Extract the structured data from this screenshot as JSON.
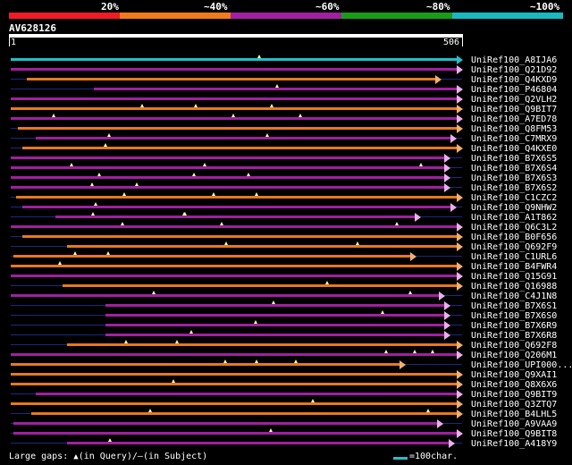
{
  "legend": {
    "labels": [
      "20%",
      "~40%",
      "~60%",
      "~80%",
      "~100%"
    ],
    "colors": [
      "#ee1c25",
      "#f07a1c",
      "#a021a0",
      "#1a9c1a",
      "#1ab9c0"
    ]
  },
  "query": {
    "name": "AV628126",
    "start": "1",
    "end": "506"
  },
  "rows": [
    {
      "name": "UniRef100_A8IJA6",
      "x1": 12,
      "x2": 517,
      "color": "#22c0c8"
    },
    {
      "name": "UniRef100_Q21D92",
      "x1": 12,
      "x2": 517,
      "color": "#a020a0"
    },
    {
      "name": "UniRef100_Q4KXD9",
      "x1": 30,
      "x2": 493,
      "color": "#e87820"
    },
    {
      "name": "UniRef100_P46804",
      "x1": 105,
      "x2": 517,
      "color": "#a020a0"
    },
    {
      "name": "UniRef100_Q2VLH2",
      "x1": 12,
      "x2": 517,
      "color": "#a020a0"
    },
    {
      "name": "UniRef100_Q9BIT7",
      "x1": 12,
      "x2": 517,
      "color": "#e87820"
    },
    {
      "name": "UniRef100_A7ED78",
      "x1": 12,
      "x2": 517,
      "color": "#a020a0"
    },
    {
      "name": "UniRef100_Q8FM53",
      "x1": 20,
      "x2": 517,
      "color": "#e87820"
    },
    {
      "name": "UniRef100_C7MRX9",
      "x1": 40,
      "x2": 510,
      "color": "#a020a0"
    },
    {
      "name": "UniRef100_Q4KXE0",
      "x1": 25,
      "x2": 517,
      "color": "#e87820"
    },
    {
      "name": "UniRef100_B7X6S5",
      "x1": 12,
      "x2": 503,
      "color": "#a020a0"
    },
    {
      "name": "UniRef100_B7X6S4",
      "x1": 12,
      "x2": 503,
      "color": "#a020a0"
    },
    {
      "name": "UniRef100_B7X6S3",
      "x1": 12,
      "x2": 503,
      "color": "#a020a0"
    },
    {
      "name": "UniRef100_B7X6S2",
      "x1": 12,
      "x2": 503,
      "color": "#a020a0"
    },
    {
      "name": "UniRef100_C1CZC2",
      "x1": 18,
      "x2": 517,
      "color": "#e87820"
    },
    {
      "name": "UniRef100_Q9NHW2",
      "x1": 25,
      "x2": 510,
      "color": "#a020a0"
    },
    {
      "name": "UniRef100_A1T862",
      "x1": 62,
      "x2": 470,
      "color": "#a020a0"
    },
    {
      "name": "UniRef100_Q6C3L2",
      "x1": 12,
      "x2": 517,
      "color": "#a020a0"
    },
    {
      "name": "UniRef100_B0F656",
      "x1": 25,
      "x2": 517,
      "color": "#e87820"
    },
    {
      "name": "UniRef100_Q692F9",
      "x1": 75,
      "x2": 517,
      "color": "#e87820"
    },
    {
      "name": "UniRef100_C1URL6",
      "x1": 15,
      "x2": 465,
      "color": "#e87820"
    },
    {
      "name": "UniRef100_B4FWR4",
      "x1": 12,
      "x2": 517,
      "color": "#e87820"
    },
    {
      "name": "UniRef100_Q15G91",
      "x1": 12,
      "x2": 517,
      "color": "#a020a0"
    },
    {
      "name": "UniRef100_Q16988",
      "x1": 70,
      "x2": 517,
      "color": "#e87820"
    },
    {
      "name": "UniRef100_C4J1N8",
      "x1": 12,
      "x2": 497,
      "color": "#a020a0"
    },
    {
      "name": "UniRef100_B7X6S1",
      "x1": 118,
      "x2": 503,
      "color": "#a020a0"
    },
    {
      "name": "UniRef100_B7X6S0",
      "x1": 118,
      "x2": 503,
      "color": "#a020a0"
    },
    {
      "name": "UniRef100_B7X6R9",
      "x1": 118,
      "x2": 503,
      "color": "#a020a0"
    },
    {
      "name": "UniRef100_B7X6R8",
      "x1": 118,
      "x2": 503,
      "color": "#a020a0"
    },
    {
      "name": "UniRef100_Q692F8",
      "x1": 75,
      "x2": 517,
      "color": "#e87820"
    },
    {
      "name": "UniRef100_Q206M1",
      "x1": 12,
      "x2": 517,
      "color": "#a020a0"
    },
    {
      "name": "UniRef100_UPI000...",
      "x1": 12,
      "x2": 453,
      "color": "#e87820"
    },
    {
      "name": "UniRef100_Q9XAI1",
      "x1": 12,
      "x2": 517,
      "color": "#e87820"
    },
    {
      "name": "UniRef100_Q8X6X6",
      "x1": 12,
      "x2": 517,
      "color": "#e87820"
    },
    {
      "name": "UniRef100_Q9BIT9",
      "x1": 40,
      "x2": 517,
      "color": "#a020a0"
    },
    {
      "name": "UniRef100_Q3ZTQ7",
      "x1": 12,
      "x2": 517,
      "color": "#e87820"
    },
    {
      "name": "UniRef100_B4LHL5",
      "x1": 35,
      "x2": 517,
      "color": "#e87820"
    },
    {
      "name": "UniRef100_A9VAA9",
      "x1": 15,
      "x2": 495,
      "color": "#a020a0"
    },
    {
      "name": "UniRef100_Q9BIT8",
      "x1": 15,
      "x2": 517,
      "color": "#a020a0"
    },
    {
      "name": "UniRef100_A418Y9",
      "x1": 75,
      "x2": 508,
      "color": "#a020a0"
    }
  ],
  "footer": {
    "large_gaps": "Large gaps:",
    "in_query": "(in Query)/",
    "in_subject": "(in Subject)",
    "scale": "=100char."
  }
}
